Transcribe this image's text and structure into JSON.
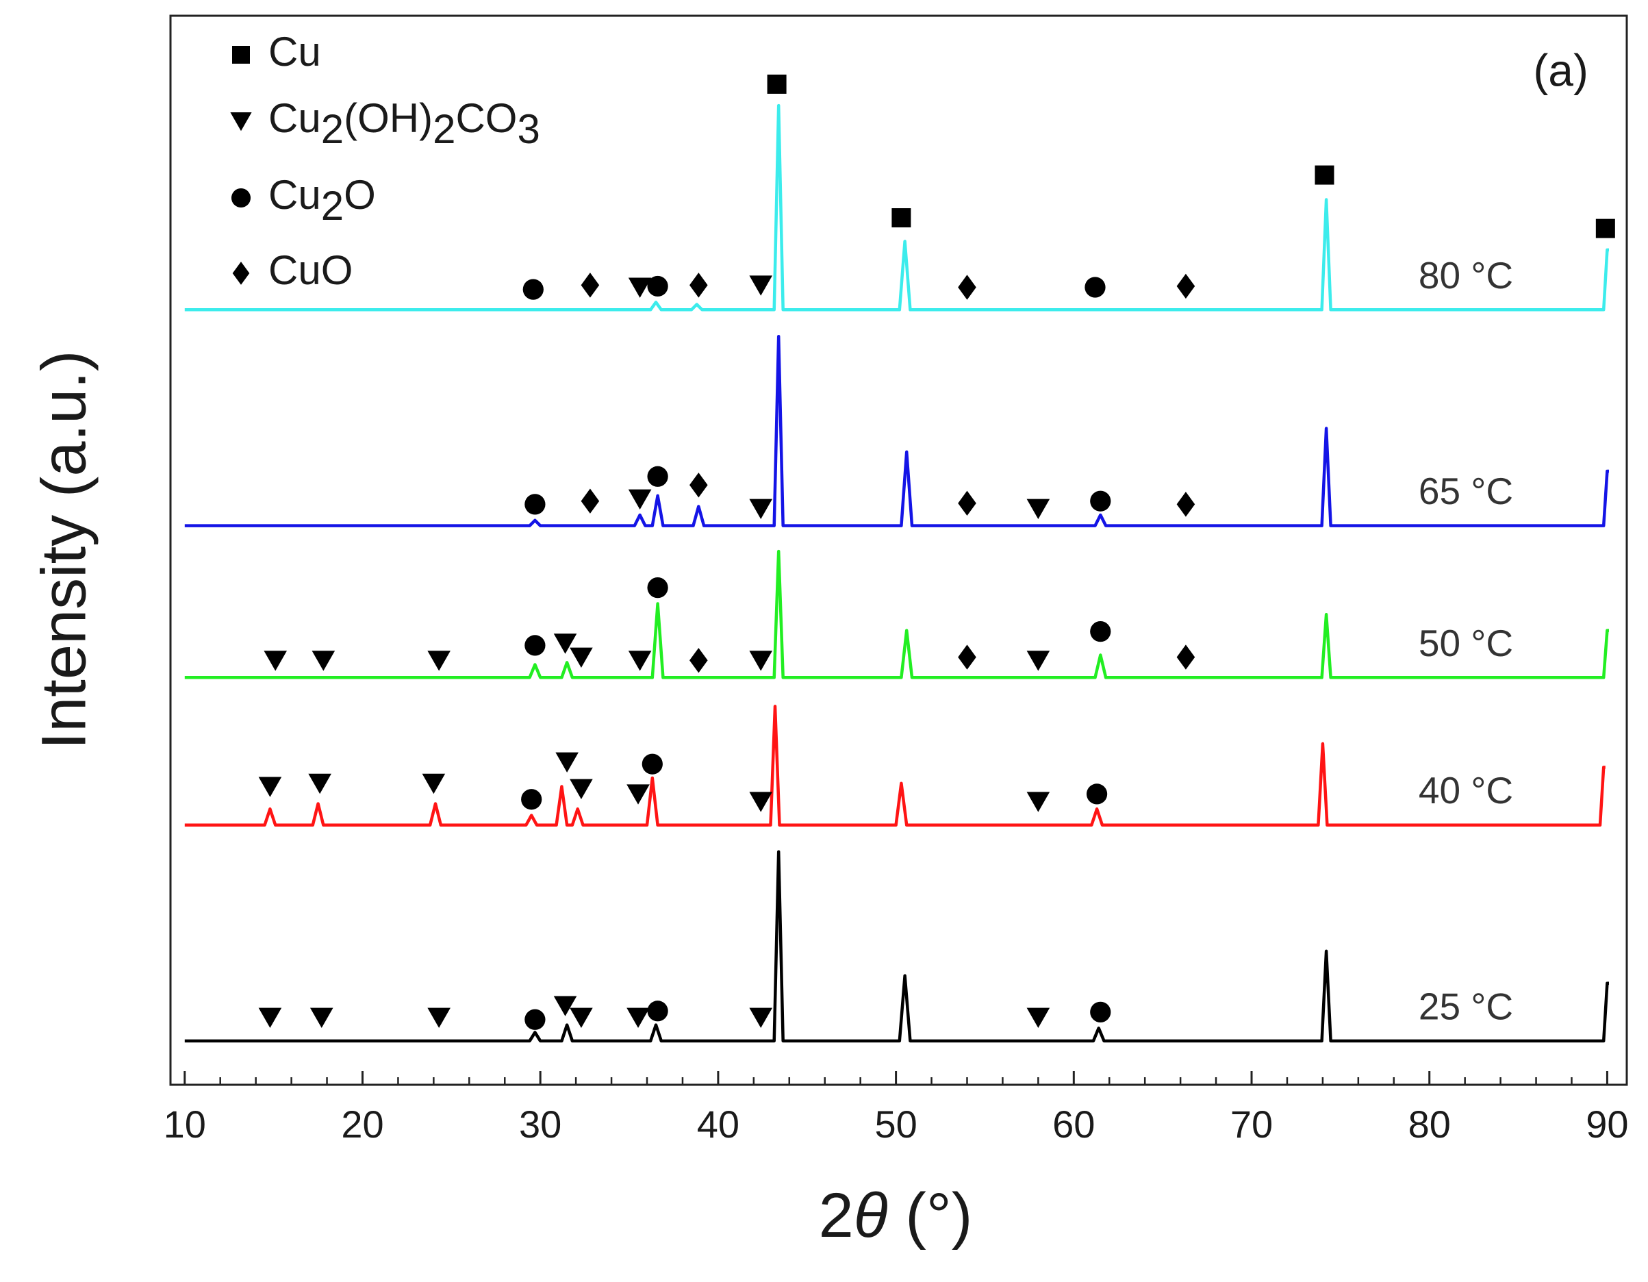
{
  "chart_data": {
    "type": "line",
    "xlabel": "2θ (°)",
    "ylabel": "Intensity (a.u.)",
    "annotation": "(a)",
    "xlim": [
      9.2,
      91.1
    ],
    "ylim": [
      0,
      100
    ],
    "xticks": [
      10,
      20,
      30,
      40,
      50,
      60,
      70,
      80,
      90
    ],
    "xminorticks": [
      12,
      14,
      16,
      18,
      22,
      24,
      26,
      28,
      32,
      34,
      36,
      38,
      42,
      44,
      46,
      48,
      52,
      54,
      56,
      58,
      62,
      64,
      66,
      68,
      72,
      74,
      76,
      78,
      82,
      84,
      86,
      88
    ],
    "series": [
      {
        "name": "25 °C",
        "color": "#000000",
        "x": [
          10,
          29.4,
          29.7,
          30.0,
          31.2,
          31.5,
          31.8,
          36.2,
          36.5,
          36.8,
          43.15,
          43.4,
          43.65,
          50.2,
          50.5,
          50.8,
          61.1,
          61.4,
          61.7,
          73.95,
          74.2,
          74.45,
          89.8,
          90.0,
          90.1
        ],
        "values": [
          4.1,
          4.1,
          4.9,
          4.1,
          4.1,
          5.6,
          4.1,
          4.1,
          5.6,
          4.1,
          4.1,
          21.8,
          4.1,
          4.1,
          10.2,
          4.1,
          4.1,
          5.3,
          4.1,
          4.1,
          12.5,
          4.1,
          4.1,
          9.5,
          9.5
        ]
      },
      {
        "name": "40 °C",
        "color": "#ff1414",
        "x": [
          10,
          14.5,
          14.8,
          15.1,
          17.2,
          17.5,
          17.8,
          23.8,
          24.1,
          24.4,
          29.2,
          29.5,
          29.8,
          30.9,
          31.2,
          31.5,
          31.8,
          32.1,
          32.4,
          36.0,
          36.3,
          36.6,
          42.95,
          43.2,
          43.45,
          50.0,
          50.3,
          50.6,
          61.0,
          61.3,
          61.6,
          73.75,
          74.0,
          74.25,
          89.6,
          89.8,
          89.9
        ],
        "values": [
          24.3,
          24.3,
          25.8,
          24.3,
          24.3,
          26.3,
          24.3,
          24.3,
          26.3,
          24.3,
          24.3,
          25.2,
          24.3,
          24.3,
          27.9,
          24.3,
          24.3,
          25.8,
          24.3,
          24.3,
          28.7,
          24.3,
          24.3,
          35.4,
          24.3,
          24.3,
          28.2,
          24.3,
          24.3,
          25.8,
          24.3,
          24.3,
          31.9,
          24.3,
          24.3,
          29.7,
          29.7
        ]
      },
      {
        "name": "50 °C",
        "color": "#22ee22",
        "x": [
          10,
          29.4,
          29.7,
          30.0,
          31.2,
          31.5,
          31.8,
          36.3,
          36.6,
          36.9,
          43.15,
          43.4,
          43.65,
          50.3,
          50.6,
          50.9,
          61.2,
          61.5,
          61.8,
          73.95,
          74.2,
          74.45,
          89.8,
          90.0,
          90.1
        ],
        "values": [
          38.1,
          38.1,
          39.3,
          38.1,
          38.1,
          39.5,
          38.1,
          38.1,
          45.0,
          38.1,
          38.1,
          49.9,
          38.1,
          38.1,
          42.5,
          38.1,
          38.1,
          40.2,
          38.1,
          38.1,
          44.0,
          38.1,
          38.1,
          42.5,
          42.5
        ]
      },
      {
        "name": "65 °C",
        "color": "#1414e6",
        "x": [
          10,
          29.4,
          29.7,
          30.0,
          35.3,
          35.6,
          35.9,
          36.3,
          36.6,
          36.9,
          38.6,
          38.9,
          39.2,
          43.15,
          43.4,
          43.65,
          50.3,
          50.6,
          50.9,
          61.2,
          61.5,
          61.8,
          73.95,
          74.2,
          74.45,
          89.8,
          90.0,
          90.1
        ],
        "values": [
          52.3,
          52.3,
          52.8,
          52.3,
          52.3,
          53.3,
          52.3,
          52.3,
          55.1,
          52.3,
          52.3,
          54.1,
          52.3,
          52.3,
          70.0,
          52.3,
          52.3,
          59.2,
          52.3,
          52.3,
          53.3,
          52.3,
          52.3,
          61.4,
          52.3,
          52.3,
          57.4,
          57.4
        ]
      },
      {
        "name": "80 °C",
        "color": "#3cecec",
        "x": [
          10,
          36.2,
          36.5,
          36.8,
          38.5,
          38.8,
          39.1,
          43.15,
          43.4,
          43.65,
          50.2,
          50.5,
          50.8,
          73.95,
          74.2,
          74.45,
          89.8,
          90.0,
          90.1
        ],
        "values": [
          72.5,
          72.5,
          73.2,
          72.5,
          72.5,
          73.0,
          72.5,
          72.5,
          91.6,
          72.5,
          72.5,
          78.9,
          72.5,
          72.5,
          82.8,
          72.5,
          72.5,
          78.1,
          78.1
        ]
      }
    ],
    "markers": [
      {
        "name": "Cu",
        "symbol": "square",
        "color": "#000000",
        "x": [
          43.3,
          50.3,
          74.1,
          89.9
        ],
        "y": [
          93.6,
          81.1,
          85.1,
          80.1
        ]
      },
      {
        "name": "Cu2(OH)2CO3",
        "symbol": "triangle-down",
        "color": "#000000",
        "x": [
          35.6,
          42.4,
          35.6,
          42.4,
          58.0,
          15.1,
          17.8,
          24.3,
          31.4,
          32.3,
          35.6,
          42.4,
          58.0,
          14.8,
          17.6,
          24.0,
          31.5,
          32.3,
          35.5,
          42.4,
          58.0,
          14.8,
          17.7,
          24.3,
          31.4,
          32.3,
          35.5,
          42.4,
          58.0
        ],
        "y": [
          74.6,
          74.8,
          54.8,
          53.9,
          53.9,
          39.7,
          39.7,
          39.7,
          41.3,
          40.0,
          39.7,
          39.7,
          39.7,
          27.9,
          28.2,
          28.2,
          30.2,
          27.7,
          27.2,
          26.5,
          26.5,
          6.3,
          6.3,
          6.3,
          7.4,
          6.3,
          6.3,
          6.3,
          6.3
        ]
      },
      {
        "name": "Cu2O",
        "symbol": "circle",
        "color": "#000000",
        "x": [
          29.6,
          36.6,
          61.2,
          29.7,
          36.6,
          61.5,
          29.7,
          36.6,
          61.5,
          29.5,
          36.3,
          61.3,
          29.7,
          36.6,
          61.5
        ],
        "y": [
          74.4,
          74.7,
          74.6,
          54.3,
          56.9,
          54.6,
          41.1,
          46.5,
          42.4,
          26.7,
          30.0,
          27.2,
          6.1,
          6.9,
          6.8
        ]
      },
      {
        "name": "CuO",
        "symbol": "diamond",
        "color": "#000000",
        "x": [
          32.8,
          38.9,
          54.0,
          66.3,
          32.8,
          38.9,
          54.0,
          66.3,
          38.9,
          54.0,
          66.3
        ],
        "y": [
          74.8,
          74.8,
          74.6,
          74.7,
          54.6,
          56.1,
          54.4,
          54.3,
          39.7,
          40.0,
          40.0
        ]
      }
    ]
  }
}
